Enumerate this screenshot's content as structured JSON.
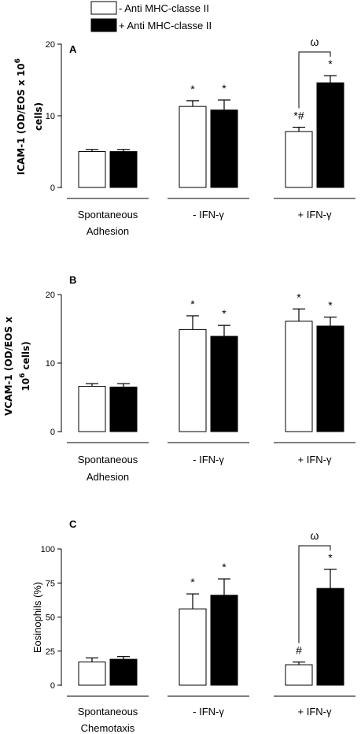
{
  "legend": [
    {
      "label": "- Anti MHC-classe II",
      "fill": "#ffffff"
    },
    {
      "label": "+ Anti MHC-classe II",
      "fill": "#000000"
    }
  ],
  "chart_data": [
    {
      "type": "bar",
      "panel_label": "A",
      "ylabel_lines": [
        "ICAM-1 (OD/EOS x 10",
        "cells)"
      ],
      "ylabel_sup": "6",
      "ylim": [
        0,
        20
      ],
      "yticks": [
        "0",
        "10",
        "20"
      ],
      "categories": [
        [
          "Spontaneous",
          "Adhesion"
        ],
        [
          "- IFN-γ"
        ],
        [
          "+ IFN-γ"
        ]
      ],
      "series": [
        {
          "name": "- Anti MHC-classe II",
          "values": [
            5.0,
            11.3,
            7.8
          ],
          "errors": [
            0.3,
            0.8,
            0.6
          ],
          "annotations": [
            "",
            "*",
            "*#"
          ]
        },
        {
          "name": "+ Anti MHC-classe II",
          "values": [
            5.0,
            10.8,
            14.6
          ],
          "errors": [
            0.3,
            1.4,
            1.0
          ],
          "annotations": [
            "",
            "*",
            "*"
          ]
        }
      ],
      "brackets": [
        {
          "category": 2,
          "label": "ω"
        }
      ]
    },
    {
      "type": "bar",
      "panel_label": "B",
      "ylabel_lines": [
        "VCAM-1 (OD/EOS x",
        "10 cells)"
      ],
      "ylabel_sup": "6",
      "ylim": [
        0,
        20
      ],
      "yticks": [
        "0",
        "10",
        "20"
      ],
      "categories": [
        [
          "Spontaneous",
          "Adhesion"
        ],
        [
          "- IFN-γ"
        ],
        [
          "+ IFN-γ"
        ]
      ],
      "series": [
        {
          "name": "- Anti MHC-classe II",
          "values": [
            6.6,
            14.9,
            16.1
          ],
          "errors": [
            0.4,
            2.0,
            1.8
          ],
          "annotations": [
            "",
            "*",
            "*"
          ]
        },
        {
          "name": "+ Anti MHC-classe II",
          "values": [
            6.5,
            13.9,
            15.4
          ],
          "errors": [
            0.5,
            1.6,
            1.3
          ],
          "annotations": [
            "",
            "*",
            "*"
          ]
        }
      ],
      "brackets": []
    },
    {
      "type": "bar",
      "panel_label": "C",
      "ylabel_lines": [
        "Eosinophils (%)"
      ],
      "ylabel_sup": "",
      "ylim": [
        0,
        100
      ],
      "yticks": [
        "0",
        "25",
        "50",
        "75",
        "100"
      ],
      "categories": [
        [
          "Spontaneous",
          "Chemotaxis"
        ],
        [
          "- IFN-γ"
        ],
        [
          "+ IFN-γ"
        ]
      ],
      "series": [
        {
          "name": "- Anti MHC-classe II",
          "values": [
            17,
            56,
            15
          ],
          "errors": [
            3,
            11,
            2
          ],
          "annotations": [
            "",
            "*",
            "#"
          ]
        },
        {
          "name": "+ Anti MHC-classe II",
          "values": [
            19,
            66,
            71
          ],
          "errors": [
            2,
            12,
            14
          ],
          "annotations": [
            "",
            "*",
            "*"
          ]
        }
      ],
      "brackets": [
        {
          "category": 2,
          "label": "ω"
        }
      ]
    }
  ]
}
